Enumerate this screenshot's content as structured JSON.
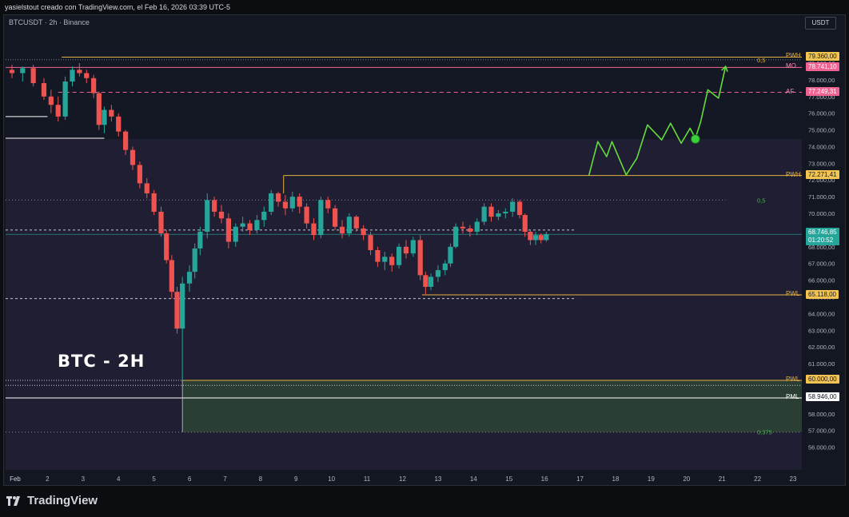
{
  "header": {
    "credit": "yasielstout creado con TradingView.com, el Feb 16, 2026 03:39 UTC-5"
  },
  "chart_header": {
    "symbol": "BTCUSDT · 2h · Binance",
    "currency": "USDT"
  },
  "annotation_title": "BTC - 2H",
  "brand": "TradingView",
  "icons": [
    "tradingview-logo-icon"
  ],
  "colors": {
    "bg": "#131722",
    "zone": "#2b2540",
    "up": "#26a69a",
    "down": "#ef5350",
    "projection": "#64dd3c",
    "gold": "#e3b341",
    "pink": "#f06292",
    "target_zone": "#2f4a36"
  },
  "current_price": {
    "value": "68.746,85",
    "countdown": "01:20:52"
  },
  "price_labels": [
    {
      "tag": "PWH",
      "value": "79.360,00",
      "style": "gold"
    },
    {
      "tag": "MO",
      "value": "78.741,10",
      "style": "pink"
    },
    {
      "tag": "AF",
      "value": "77.249,31",
      "style": "pink"
    },
    {
      "tag": "PWH",
      "value": "72.271,41",
      "style": "gold"
    },
    {
      "tag": "PWL",
      "value": "65.118,00",
      "style": "gold"
    },
    {
      "tag": "PWL",
      "value": "60.000,00",
      "style": "gold"
    },
    {
      "tag": "PML",
      "value": "58.946,00",
      "style": "white"
    }
  ],
  "fib_labels": [
    {
      "text": "0,5",
      "price": 79.2
    },
    {
      "text": "0,5",
      "price": 70.8
    },
    {
      "text": "0,375",
      "price": 56.9
    }
  ],
  "chart_data": {
    "type": "candlestick",
    "title": "BTC - 2H",
    "x_ticks": [
      "Feb",
      "2",
      "3",
      "4",
      "5",
      "6",
      "7",
      "8",
      "9",
      "10",
      "11",
      "12",
      "13",
      "14",
      "15",
      "16",
      "17",
      "18",
      "19",
      "20",
      "21",
      "22",
      "23"
    ],
    "x_range_days": [
      1,
      23
    ],
    "y_ticks": [
      "56.000,00",
      "57.000,00",
      "58.000,00",
      "59.000,00",
      "60.000,00",
      "61.000,00",
      "62.000,00",
      "63.000,00",
      "64.000,00",
      "65.000,00",
      "66.000,00",
      "67.000,00",
      "68.000,00",
      "69.000,00",
      "70.000,00",
      "71.000,00",
      "72.000,00",
      "73.000,00",
      "74.000,00",
      "75.000,00",
      "76.000,00",
      "77.000,00",
      "78.000,00",
      "79.000,00"
    ],
    "y_range_k": [
      55.5,
      80.1
    ],
    "candles": [
      [
        1.0,
        78.6,
        78.9,
        78.1,
        78.4
      ],
      [
        1.3,
        78.4,
        78.8,
        77.9,
        78.7
      ],
      [
        1.6,
        78.7,
        78.9,
        77.6,
        77.8
      ],
      [
        1.9,
        77.8,
        78.1,
        76.8,
        77.0
      ],
      [
        2.1,
        77.0,
        77.4,
        76.0,
        76.5
      ],
      [
        2.3,
        76.5,
        77.0,
        75.5,
        75.8
      ],
      [
        2.5,
        75.8,
        78.2,
        75.6,
        77.9
      ],
      [
        2.7,
        77.9,
        78.8,
        77.6,
        78.6
      ],
      [
        2.9,
        78.6,
        79.0,
        78.2,
        78.4
      ],
      [
        3.1,
        78.4,
        78.6,
        77.8,
        78.1
      ],
      [
        3.3,
        78.1,
        78.3,
        76.9,
        77.2
      ],
      [
        3.45,
        77.2,
        77.3,
        75.0,
        75.3
      ],
      [
        3.6,
        75.3,
        76.4,
        74.8,
        76.2
      ],
      [
        3.8,
        76.2,
        76.5,
        75.5,
        75.8
      ],
      [
        4.0,
        75.8,
        76.0,
        74.6,
        74.9
      ],
      [
        4.2,
        74.9,
        75.0,
        73.5,
        73.8
      ],
      [
        4.4,
        73.8,
        74.0,
        72.6,
        72.9
      ],
      [
        4.6,
        72.9,
        73.1,
        71.5,
        71.8
      ],
      [
        4.8,
        71.8,
        72.1,
        70.9,
        71.2
      ],
      [
        5.0,
        71.2,
        71.4,
        69.9,
        70.1
      ],
      [
        5.2,
        70.1,
        70.4,
        68.6,
        68.8
      ],
      [
        5.35,
        68.8,
        69.0,
        67.0,
        67.2
      ],
      [
        5.5,
        67.2,
        67.5,
        64.9,
        65.3
      ],
      [
        5.65,
        65.3,
        65.6,
        62.8,
        63.1
      ],
      [
        5.8,
        63.1,
        66.2,
        60.0,
        65.8
      ],
      [
        6.0,
        65.8,
        66.9,
        65.3,
        66.5
      ],
      [
        6.15,
        66.5,
        68.2,
        66.1,
        67.9
      ],
      [
        6.3,
        67.9,
        69.2,
        67.5,
        68.9
      ],
      [
        6.5,
        68.9,
        71.2,
        68.5,
        70.8
      ],
      [
        6.7,
        70.8,
        71.0,
        69.8,
        70.1
      ],
      [
        6.9,
        70.1,
        70.5,
        69.4,
        69.7
      ],
      [
        7.1,
        69.7,
        70.0,
        67.9,
        68.3
      ],
      [
        7.3,
        68.3,
        69.4,
        68.0,
        69.2
      ],
      [
        7.5,
        69.2,
        69.8,
        68.9,
        69.4
      ],
      [
        7.7,
        69.4,
        69.6,
        68.7,
        69.0
      ],
      [
        7.9,
        69.0,
        69.9,
        68.8,
        69.6
      ],
      [
        8.1,
        69.6,
        70.4,
        69.2,
        70.1
      ],
      [
        8.3,
        70.1,
        71.4,
        69.9,
        71.2
      ],
      [
        8.5,
        71.2,
        71.3,
        70.4,
        70.7
      ],
      [
        8.7,
        70.7,
        71.1,
        69.9,
        70.3
      ],
      [
        8.9,
        70.3,
        71.3,
        70.1,
        71.0
      ],
      [
        9.1,
        71.0,
        71.2,
        70.0,
        70.4
      ],
      [
        9.3,
        70.4,
        70.6,
        69.1,
        69.4
      ],
      [
        9.5,
        69.4,
        69.7,
        68.4,
        68.7
      ],
      [
        9.7,
        68.7,
        71.0,
        68.5,
        70.8
      ],
      [
        9.9,
        70.8,
        71.0,
        70.0,
        70.3
      ],
      [
        10.1,
        70.3,
        70.5,
        69.0,
        69.2
      ],
      [
        10.3,
        69.2,
        69.6,
        68.5,
        68.8
      ],
      [
        10.5,
        68.8,
        70.0,
        68.6,
        69.8
      ],
      [
        10.7,
        69.8,
        69.9,
        68.9,
        69.1
      ],
      [
        10.9,
        69.1,
        69.3,
        68.4,
        68.7
      ],
      [
        11.1,
        68.7,
        68.9,
        67.5,
        67.8
      ],
      [
        11.3,
        67.8,
        68.0,
        66.8,
        67.1
      ],
      [
        11.5,
        67.1,
        67.7,
        66.6,
        67.4
      ],
      [
        11.7,
        67.4,
        67.6,
        66.5,
        66.9
      ],
      [
        11.9,
        66.9,
        68.2,
        66.7,
        68.0
      ],
      [
        12.1,
        68.0,
        68.4,
        67.3,
        67.6
      ],
      [
        12.3,
        67.6,
        68.6,
        67.4,
        68.4
      ],
      [
        12.5,
        68.4,
        68.7,
        66.0,
        66.3
      ],
      [
        12.65,
        66.3,
        66.5,
        65.1,
        65.6
      ],
      [
        12.8,
        65.6,
        66.4,
        65.4,
        66.2
      ],
      [
        13.0,
        66.2,
        66.9,
        65.9,
        66.6
      ],
      [
        13.2,
        66.6,
        67.2,
        66.3,
        67.0
      ],
      [
        13.35,
        67.0,
        68.2,
        66.8,
        68.0
      ],
      [
        13.5,
        68.0,
        69.4,
        67.9,
        69.2
      ],
      [
        13.7,
        69.2,
        69.5,
        68.8,
        69.1
      ],
      [
        13.9,
        69.1,
        69.3,
        68.6,
        68.9
      ],
      [
        14.1,
        68.9,
        69.7,
        68.7,
        69.5
      ],
      [
        14.3,
        69.5,
        70.6,
        69.3,
        70.4
      ],
      [
        14.5,
        70.4,
        70.6,
        69.5,
        69.8
      ],
      [
        14.7,
        69.8,
        70.2,
        69.6,
        70.0
      ],
      [
        14.9,
        70.0,
        70.3,
        69.7,
        70.1
      ],
      [
        15.1,
        70.1,
        70.9,
        69.8,
        70.7
      ],
      [
        15.3,
        70.7,
        70.8,
        69.7,
        69.9
      ],
      [
        15.45,
        69.9,
        70.0,
        68.6,
        68.9
      ],
      [
        15.6,
        68.9,
        69.0,
        68.1,
        68.4
      ],
      [
        15.75,
        68.4,
        68.9,
        68.1,
        68.7
      ],
      [
        15.9,
        68.7,
        68.8,
        68.2,
        68.4
      ],
      [
        16.05,
        68.4,
        68.9,
        68.3,
        68.75
      ]
    ],
    "projection_path": [
      [
        17.25,
        72.27
      ],
      [
        17.5,
        74.3
      ],
      [
        17.75,
        73.4
      ],
      [
        17.9,
        74.3
      ],
      [
        18.1,
        73.3
      ],
      [
        18.3,
        72.3
      ],
      [
        18.6,
        73.3
      ],
      [
        18.9,
        75.3
      ],
      [
        19.3,
        74.4
      ],
      [
        19.55,
        75.4
      ],
      [
        19.85,
        74.2
      ],
      [
        20.1,
        75.1
      ],
      [
        20.25,
        74.5
      ],
      [
        20.4,
        75.5
      ],
      [
        20.6,
        77.4
      ],
      [
        20.9,
        76.9
      ],
      [
        21.1,
        78.8
      ]
    ],
    "projection_marker": [
      20.25,
      74.45
    ]
  }
}
